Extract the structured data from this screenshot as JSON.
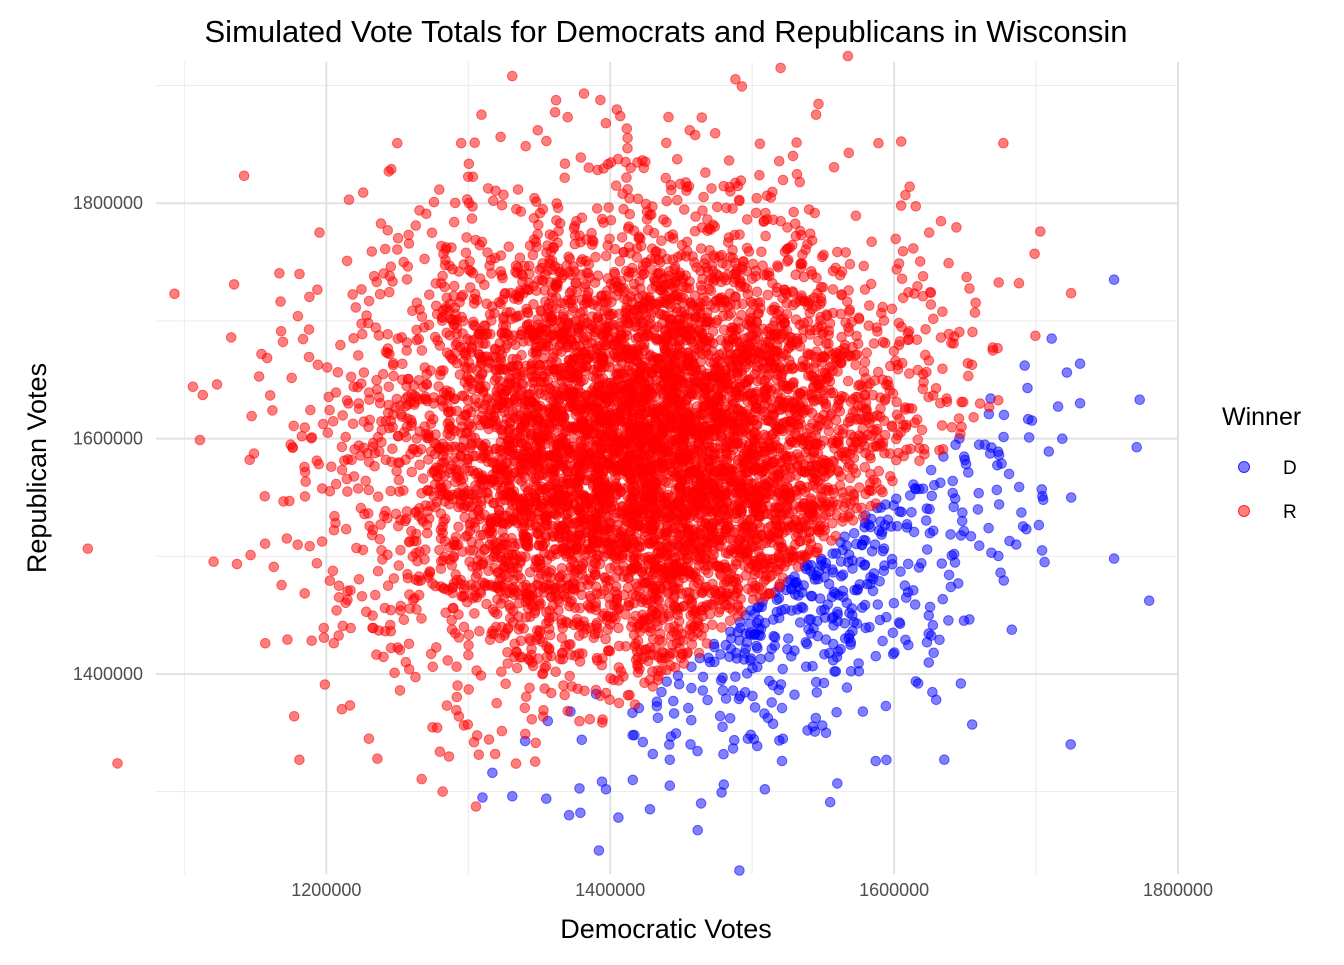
{
  "chart_data": {
    "type": "scatter",
    "title": "Simulated Vote Totals for Democrats and Republicans in Wisconsin",
    "xlabel": "Democratic Votes",
    "ylabel": "Republican Votes",
    "xlim": [
      1080000,
      1800000
    ],
    "ylim": [
      1230000,
      1920000
    ],
    "x_ticks": [
      1200000,
      1400000,
      1600000,
      1800000
    ],
    "x_tick_labels": [
      "1200000",
      "1400000",
      "1600000",
      "1800000"
    ],
    "y_ticks": [
      1400000,
      1600000,
      1800000
    ],
    "y_tick_labels": [
      "1400000",
      "1600000",
      "1800000"
    ],
    "grid": true,
    "legend": {
      "title": "Winner",
      "placement": "right",
      "entries": [
        {
          "label": "D",
          "color": "#0000ff"
        },
        {
          "label": "R",
          "color": "#ff0000"
        }
      ]
    },
    "series": [
      {
        "name": "D",
        "color": "#0000ff",
        "points": [
          [
            1755000,
            1735000
          ],
          [
            1773000,
            1633000
          ],
          [
            1711000,
            1685000
          ],
          [
            1731000,
            1630000
          ],
          [
            1692000,
            1662000
          ],
          [
            1755000,
            1498000
          ],
          [
            1709000,
            1589000
          ],
          [
            1694000,
            1643000
          ],
          [
            1705000,
            1548000
          ],
          [
            1706000,
            1495000
          ],
          [
            1686000,
            1510000
          ],
          [
            1675000,
            1486000
          ],
          [
            1655000,
            1357000
          ],
          [
            1632000,
            1429000
          ],
          [
            1617000,
            1392000
          ],
          [
            1587000,
            1326000
          ],
          [
            1578000,
            1368000
          ],
          [
            1560000,
            1307000
          ],
          [
            1555000,
            1291000
          ],
          [
            1521000,
            1326000
          ],
          [
            1509000,
            1302000
          ],
          [
            1491000,
            1233000
          ],
          [
            1480000,
            1306000
          ],
          [
            1464000,
            1290000
          ],
          [
            1442000,
            1305000
          ],
          [
            1428000,
            1285000
          ],
          [
            1392000,
            1250000
          ],
          [
            1397000,
            1302000
          ],
          [
            1371000,
            1280000
          ],
          [
            1355000,
            1294000
          ],
          [
            1331000,
            1296000
          ],
          [
            1310000,
            1295000
          ],
          [
            1317000,
            1316000
          ],
          [
            1340000,
            1343000
          ],
          [
            1356000,
            1360000
          ],
          [
            1372000,
            1368000
          ],
          [
            1380000,
            1344000
          ],
          [
            1390000,
            1383000
          ],
          [
            1417000,
            1348000
          ],
          [
            1442000,
            1327000
          ],
          [
            1497000,
            1345000
          ],
          [
            1521000,
            1371000
          ],
          [
            1552000,
            1350000
          ],
          [
            1575000,
            1409000
          ],
          [
            1608000,
            1429000
          ],
          [
            1640000,
            1474000
          ],
          [
            1660000,
            1509000
          ],
          [
            1681000,
            1570000
          ],
          [
            1668000,
            1634000
          ],
          [
            1674000,
            1586000
          ],
          [
            1646000,
            1600000
          ],
          [
            1625000,
            1540000
          ]
        ]
      },
      {
        "name": "R",
        "color": "#ff0000",
        "points": [
          [
            1093000,
            1723000
          ],
          [
            1106000,
            1644000
          ],
          [
            1113000,
            1637000
          ],
          [
            1133000,
            1686000
          ],
          [
            1135000,
            1731000
          ],
          [
            1157000,
            1426000
          ],
          [
            1163000,
            1491000
          ],
          [
            1181000,
            1327000
          ],
          [
            1199000,
            1391000
          ],
          [
            1211000,
            1370000
          ],
          [
            1230000,
            1345000
          ],
          [
            1256000,
            1410000
          ],
          [
            1282000,
            1300000
          ],
          [
            1236000,
            1328000
          ],
          [
            1331000,
            1908000
          ],
          [
            1520000,
            1915000
          ],
          [
            1349000,
            1862000
          ],
          [
            1456000,
            1862000
          ],
          [
            1589000,
            1851000
          ],
          [
            1677000,
            1851000
          ],
          [
            1250000,
            1851000
          ],
          [
            1295000,
            1851000
          ],
          [
            1703000,
            1776000
          ],
          [
            1699000,
            1757000
          ],
          [
            1688000,
            1732000
          ],
          [
            1611000,
            1814000
          ],
          [
            1605000,
            1798000
          ],
          [
            1216000,
            1803000
          ],
          [
            1226000,
            1809000
          ],
          [
            1244000,
            1827000
          ],
          [
            1180000,
            1704000
          ],
          [
            1263000,
            1781000
          ],
          [
            1637000,
            1634000
          ],
          [
            1622000,
            1671000
          ],
          [
            1652000,
            1664000
          ],
          [
            1319000,
            1332000
          ],
          [
            1304000,
            1342000
          ],
          [
            1214000,
            1523000
          ],
          [
            1174000,
            1547000
          ],
          [
            1146000,
            1582000
          ],
          [
            1201000,
            1605000
          ],
          [
            1244000,
            1644000
          ]
        ]
      }
    ]
  }
}
